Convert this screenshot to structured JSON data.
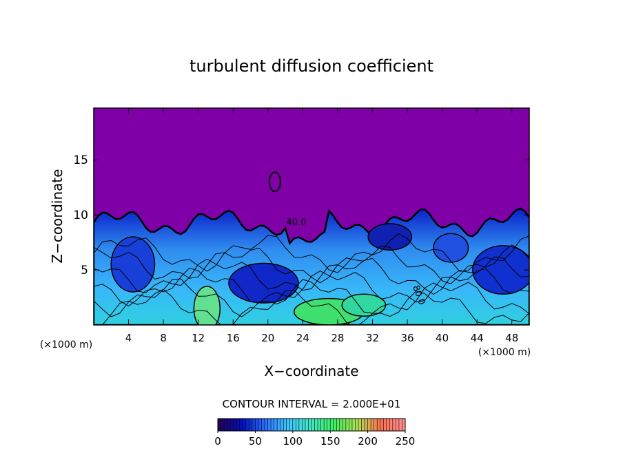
{
  "chart_data": {
    "type": "contour",
    "title": "turbulent diffusion coefficient",
    "x_label": "X−coordinate",
    "y_label": "Z−coordinate",
    "x_unit_left": "(×1000 m)",
    "x_unit_right": "(×1000 m)",
    "contour_interval_label": "CONTOUR INTERVAL = 2.000E+01",
    "contour_labels": [
      "40.0",
      "80.0"
    ],
    "xlim": [
      0,
      50
    ],
    "xticks": [
      4,
      8,
      12,
      16,
      20,
      24,
      28,
      32,
      36,
      40,
      44,
      48
    ],
    "ylim": [
      0,
      19.7
    ],
    "yticks": [
      5,
      10,
      15
    ],
    "clim": [
      0,
      250
    ],
    "cticks": [
      0,
      50,
      100,
      150,
      200,
      250
    ],
    "background_color": "#8000a8",
    "colormap": [
      "#24005a",
      "#0010c0",
      "#2a70ff",
      "#40c8ff",
      "#40e8c0",
      "#40f060",
      "#b0e050",
      "#ff7050",
      "#ff9090"
    ]
  }
}
